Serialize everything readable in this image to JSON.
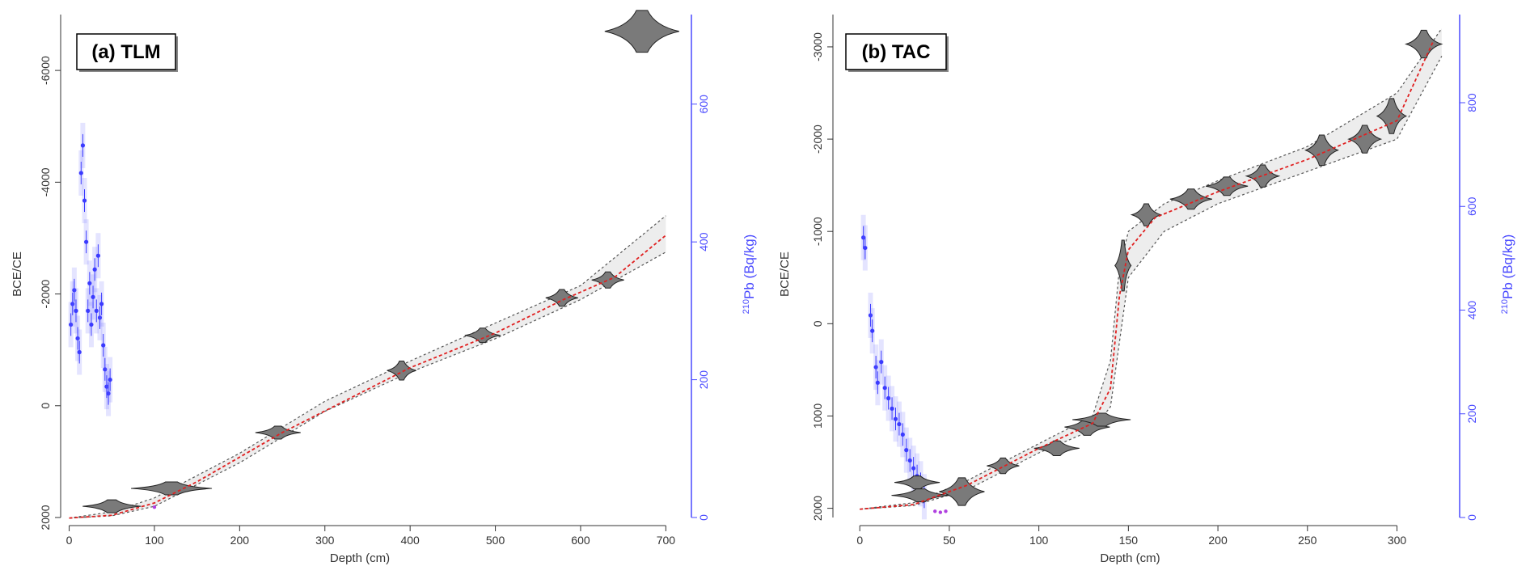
{
  "chart_data": [
    {
      "type": "scatter",
      "panel_label": "(a) TLM",
      "xlabel": "Depth (cm)",
      "ylabel": "BCE/CE",
      "y2label_sup": "210",
      "y2label_main": "Pb (Bq/kg)",
      "xlim": [
        -10,
        730
      ],
      "ylim": [
        2000,
        -7000
      ],
      "y2lim": [
        0,
        730
      ],
      "x_ticks": [
        0,
        100,
        200,
        300,
        400,
        500,
        600,
        700
      ],
      "y_ticks": [
        2000,
        0,
        -2000,
        -4000,
        -6000
      ],
      "y2_ticks": [
        0,
        200,
        400,
        600
      ],
      "age_model_median": [
        [
          0,
          2010
        ],
        [
          50,
          1960
        ],
        [
          100,
          1740
        ],
        [
          150,
          1360
        ],
        [
          250,
          480
        ],
        [
          400,
          -680
        ],
        [
          500,
          -1300
        ],
        [
          580,
          -1900
        ],
        [
          640,
          -2300
        ],
        [
          700,
          -3050
        ]
      ],
      "age_model_lower": [
        [
          0,
          2010
        ],
        [
          50,
          1970
        ],
        [
          100,
          1800
        ],
        [
          200,
          1020
        ],
        [
          300,
          100
        ],
        [
          400,
          -600
        ],
        [
          500,
          -1200
        ],
        [
          600,
          -1900
        ],
        [
          700,
          -2750
        ]
      ],
      "age_model_upper": [
        [
          0,
          2010
        ],
        [
          50,
          1900
        ],
        [
          100,
          1650
        ],
        [
          200,
          850
        ],
        [
          300,
          -80
        ],
        [
          400,
          -800
        ],
        [
          500,
          -1480
        ],
        [
          600,
          -2150
        ],
        [
          700,
          -3400
        ]
      ],
      "dated_depths": [
        {
          "depth": 50,
          "age": 1800,
          "width": 36,
          "height": 150
        },
        {
          "depth": 120,
          "age": 1480,
          "width": 50,
          "height": 110
        },
        {
          "depth": 245,
          "age": 480,
          "width": 28,
          "height": 220
        },
        {
          "depth": 390,
          "age": -630,
          "width": 18,
          "height": 340
        },
        {
          "depth": 485,
          "age": -1260,
          "width": 22,
          "height": 260
        },
        {
          "depth": 578,
          "age": -1930,
          "width": 20,
          "height": 300
        },
        {
          "depth": 632,
          "age": -2250,
          "width": 20,
          "height": 290
        },
        {
          "depth": 672,
          "age": -6700,
          "width": 46,
          "height": 750
        }
      ],
      "pb210": {
        "depth": [
          2,
          4,
          6,
          8,
          10,
          12,
          14,
          16,
          18,
          20,
          22,
          24,
          26,
          28,
          30,
          32,
          34,
          36,
          38,
          40,
          42,
          44,
          46,
          48
        ],
        "activity": [
          280,
          310,
          330,
          300,
          260,
          240,
          500,
          540,
          460,
          400,
          300,
          340,
          280,
          320,
          360,
          300,
          380,
          290,
          310,
          250,
          215,
          190,
          180,
          200
        ]
      },
      "supported_pb": [
        {
          "depth": 100,
          "activity": 15
        }
      ]
    },
    {
      "type": "scatter",
      "panel_label": "(b) TAC",
      "xlabel": "Depth (cm)",
      "ylabel": "BCE/CE",
      "y2label_sup": "210",
      "y2label_main": "Pb (Bq/kg)",
      "xlim": [
        -15,
        335
      ],
      "ylim": [
        2100,
        -3350
      ],
      "y2lim": [
        0,
        970
      ],
      "x_ticks": [
        0,
        50,
        100,
        150,
        200,
        250,
        300
      ],
      "y_ticks": [
        2000,
        1000,
        0,
        -1000,
        -2000,
        -3000
      ],
      "y2_ticks": [
        0,
        200,
        400,
        600,
        800
      ],
      "age_model_median": [
        [
          0,
          2010
        ],
        [
          30,
          1960
        ],
        [
          60,
          1750
        ],
        [
          100,
          1350
        ],
        [
          130,
          1080
        ],
        [
          140,
          700
        ],
        [
          145,
          -300
        ],
        [
          150,
          -800
        ],
        [
          165,
          -1150
        ],
        [
          200,
          -1430
        ],
        [
          250,
          -1780
        ],
        [
          300,
          -2200
        ],
        [
          320,
          -3050
        ]
      ],
      "age_model_lower": [
        [
          0,
          2010
        ],
        [
          30,
          1970
        ],
        [
          60,
          1800
        ],
        [
          100,
          1400
        ],
        [
          130,
          1150
        ],
        [
          140,
          900
        ],
        [
          145,
          200
        ],
        [
          150,
          -500
        ],
        [
          170,
          -1000
        ],
        [
          200,
          -1300
        ],
        [
          250,
          -1650
        ],
        [
          300,
          -2000
        ],
        [
          325,
          -2900
        ]
      ],
      "age_model_upper": [
        [
          0,
          2010
        ],
        [
          30,
          1940
        ],
        [
          60,
          1700
        ],
        [
          100,
          1300
        ],
        [
          130,
          1000
        ],
        [
          140,
          400
        ],
        [
          145,
          -600
        ],
        [
          150,
          -1000
        ],
        [
          170,
          -1300
        ],
        [
          200,
          -1550
        ],
        [
          250,
          -1920
        ],
        [
          300,
          -2500
        ],
        [
          325,
          -3200
        ]
      ],
      "dated_depths": [
        {
          "depth": 32,
          "age": 1720,
          "width": 28,
          "height": 140
        },
        {
          "depth": 34,
          "age": 1860,
          "width": 36,
          "height": 110
        },
        {
          "depth": 57,
          "age": 1820,
          "width": 28,
          "height": 300
        },
        {
          "depth": 80,
          "age": 1540,
          "width": 20,
          "height": 170
        },
        {
          "depth": 110,
          "age": 1350,
          "width": 28,
          "height": 160
        },
        {
          "depth": 127,
          "age": 1120,
          "width": 28,
          "height": 180
        },
        {
          "depth": 135,
          "age": 1040,
          "width": 36,
          "height": 140
        },
        {
          "depth": 147,
          "age": -630,
          "width": 10,
          "height": 550
        },
        {
          "depth": 160,
          "age": -1180,
          "width": 18,
          "height": 240
        },
        {
          "depth": 185,
          "age": -1350,
          "width": 26,
          "height": 220
        },
        {
          "depth": 205,
          "age": -1490,
          "width": 26,
          "height": 200
        },
        {
          "depth": 225,
          "age": -1600,
          "width": 20,
          "height": 240
        },
        {
          "depth": 258,
          "age": -1880,
          "width": 20,
          "height": 330
        },
        {
          "depth": 282,
          "age": -2000,
          "width": 20,
          "height": 300
        },
        {
          "depth": 297,
          "age": -2250,
          "width": 18,
          "height": 380
        },
        {
          "depth": 315,
          "age": -3030,
          "width": 22,
          "height": 300
        }
      ],
      "pb210": {
        "depth": [
          2,
          3,
          6,
          7,
          9,
          10,
          12,
          14,
          16,
          18,
          20,
          22,
          24,
          26,
          28,
          30,
          32,
          34,
          36
        ],
        "activity": [
          540,
          520,
          390,
          360,
          290,
          260,
          300,
          250,
          230,
          210,
          190,
          180,
          160,
          130,
          110,
          95,
          80,
          65,
          40
        ]
      },
      "supported_pb": [
        {
          "depth": 42,
          "activity": 12
        },
        {
          "depth": 45,
          "activity": 10
        },
        {
          "depth": 48,
          "activity": 12
        }
      ]
    }
  ]
}
